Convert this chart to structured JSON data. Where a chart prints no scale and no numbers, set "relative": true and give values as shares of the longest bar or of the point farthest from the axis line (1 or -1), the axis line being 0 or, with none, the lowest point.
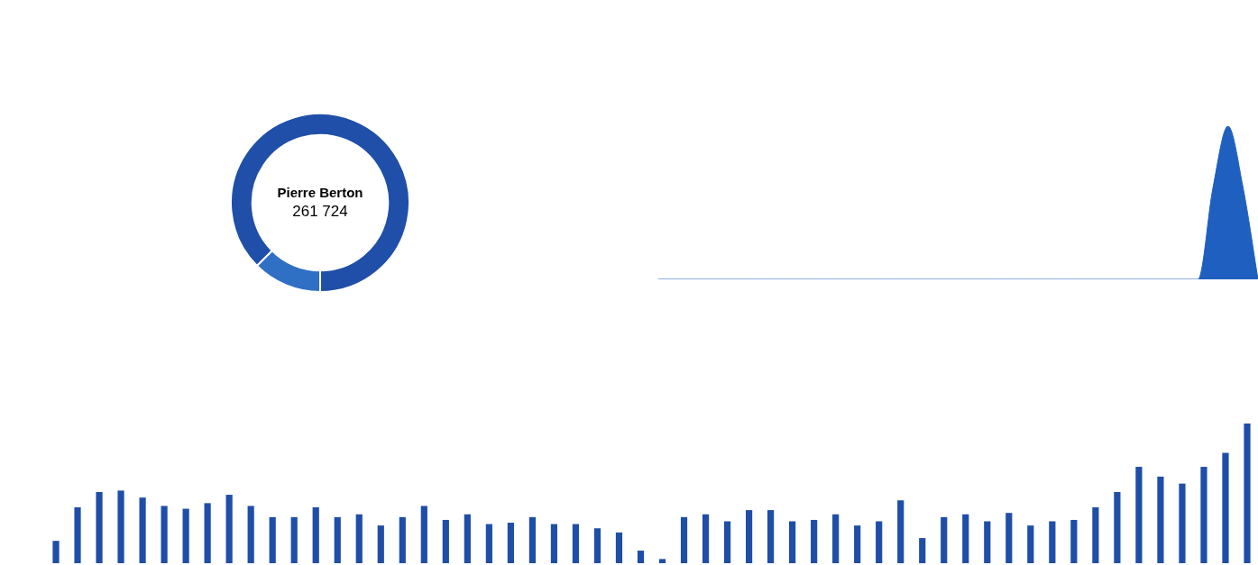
{
  "chart_data": [
    {
      "type": "donut",
      "categories": [
        null,
        null
      ],
      "values": [
        87.5,
        12.5
      ],
      "colors": [
        "#1f4fa8",
        "#2f6fc4"
      ],
      "annotations": [
        "Pierre Berton",
        "261 724"
      ]
    },
    {
      "type": "area",
      "relative": true,
      "categories": [
        null,
        null,
        null,
        null,
        null,
        null,
        null,
        null,
        null,
        null,
        null,
        null,
        null,
        null,
        null,
        null,
        null,
        null,
        null,
        null,
        null,
        null,
        null,
        null,
        null,
        null,
        null,
        null,
        null,
        null,
        null,
        null,
        null,
        null,
        null,
        null,
        null,
        null,
        null,
        null,
        null
      ],
      "series": [
        {
          "color": "#1f5fbf",
          "values": [
            0,
            0,
            0,
            0,
            0,
            0,
            0,
            0,
            0,
            0,
            0,
            0,
            0,
            0,
            0,
            0,
            0,
            0,
            0,
            0,
            0,
            0,
            0,
            0,
            0,
            0,
            0,
            0,
            0,
            0,
            0,
            0,
            0,
            0,
            0,
            0,
            0,
            0.6,
            1,
            0.6,
            0
          ]
        }
      ]
    },
    {
      "type": "bar",
      "relative": true,
      "categories": [
        null,
        null,
        null,
        null,
        null,
        null,
        null,
        null,
        null,
        null,
        null,
        null,
        null,
        null,
        null,
        null,
        null,
        null,
        null,
        null,
        null,
        null,
        null,
        null,
        null,
        null,
        null,
        null,
        null,
        null,
        null,
        null,
        null,
        null,
        null,
        null,
        null,
        null,
        null,
        null,
        null,
        null,
        null,
        null,
        null,
        null,
        null,
        null,
        null,
        null,
        null,
        null,
        null,
        null,
        null,
        null
      ],
      "series": [
        {
          "color": "#1f4ea8",
          "values": [
            0.16,
            0.4,
            0.51,
            0.52,
            0.47,
            0.41,
            0.39,
            0.43,
            0.49,
            0.41,
            0.33,
            0.33,
            0.4,
            0.33,
            0.35,
            0.27,
            0.33,
            0.41,
            0.31,
            0.35,
            0.28,
            0.29,
            0.33,
            0.28,
            0.28,
            0.25,
            0.22,
            0.09,
            0.03,
            0.33,
            0.35,
            0.3,
            0.38,
            0.38,
            0.3,
            0.31,
            0.35,
            0.27,
            0.3,
            0.45,
            0.18,
            0.33,
            0.35,
            0.3,
            0.36,
            0.27,
            0.3,
            0.31,
            0.4,
            0.51,
            0.69,
            0.62,
            0.57,
            0.69,
            0.79,
            1
          ]
        }
      ]
    }
  ]
}
